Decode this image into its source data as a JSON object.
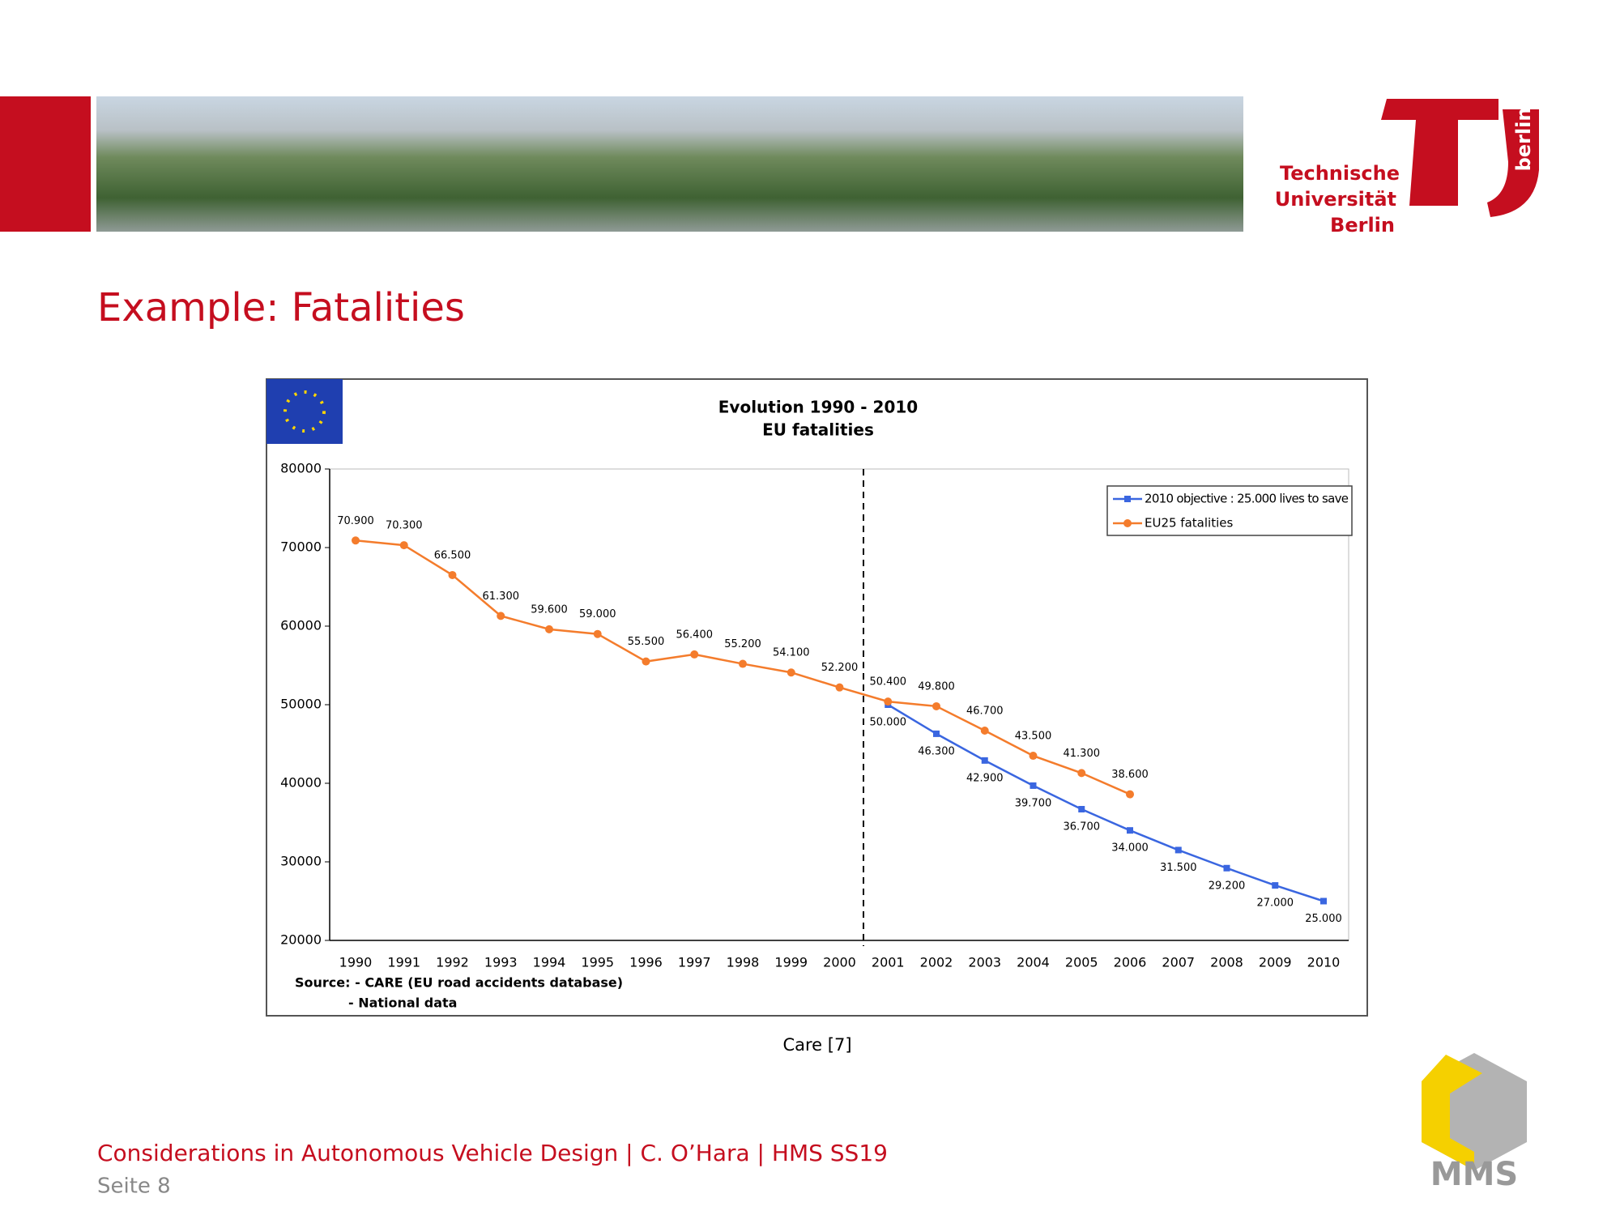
{
  "header": {
    "logo": {
      "line1": "Technische",
      "line2": "Universität",
      "line3": "Berlin",
      "side": "berlin"
    }
  },
  "slide_title": "Example: Fatalities",
  "chart_data": {
    "type": "line",
    "title": "Evolution 1990 - 2010",
    "subtitle": "EU fatalities",
    "categories": [
      "1990",
      "1991",
      "1992",
      "1993",
      "1994",
      "1995",
      "1996",
      "1997",
      "1998",
      "1999",
      "2000",
      "2001",
      "2002",
      "2003",
      "2004",
      "2005",
      "2006",
      "2007",
      "2008",
      "2009",
      "2010"
    ],
    "series": [
      {
        "name": "2010 objective : 25.000 lives to save",
        "color": "#3a66e0",
        "values": [
          null,
          null,
          null,
          null,
          null,
          null,
          null,
          null,
          null,
          null,
          null,
          50000,
          46300,
          42900,
          39700,
          36700,
          34000,
          31500,
          29200,
          27000,
          25000
        ],
        "value_labels": [
          null,
          null,
          null,
          null,
          null,
          null,
          null,
          null,
          null,
          null,
          null,
          "50.000",
          "46.300",
          "42.900",
          "39.700",
          "36.700",
          "34.000",
          "31.500",
          "29.200",
          "27.000",
          "25.000"
        ]
      },
      {
        "name": "EU25  fatalities",
        "color": "#f47c2c",
        "values": [
          70900,
          70300,
          66500,
          61300,
          59600,
          59000,
          55500,
          56400,
          55200,
          54100,
          52200,
          50400,
          49800,
          46700,
          43500,
          41300,
          38600,
          null,
          null,
          null,
          null
        ],
        "value_labels": [
          "70.900",
          "70.300",
          "66.500",
          "61.300",
          "59.600",
          "59.000",
          "55.500",
          "56.400",
          "55.200",
          "54.100",
          "52.200",
          "50.400",
          "49.800",
          "46.700",
          "43.500",
          "41.300",
          "38.600",
          null,
          null,
          null,
          null
        ]
      }
    ],
    "ylim": [
      20000,
      80000
    ],
    "yticks": [
      20000,
      30000,
      40000,
      50000,
      60000,
      70000,
      80000
    ],
    "source": [
      "Source: - CARE (EU road accidents database)",
      "- National data"
    ]
  },
  "caption": "Care [7]",
  "footer": {
    "line1": "Considerations in Autonomous Vehicle Design | C. O’Hara | HMS SS19",
    "page": "Seite 8",
    "logo": "MMS"
  }
}
